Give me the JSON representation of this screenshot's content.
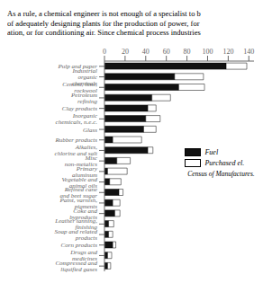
{
  "chart_data": {
    "type": "bar",
    "orientation": "horizontal",
    "stacked": true,
    "title": [
      "As a rule, a chemical engineer is not enough of a specialist to b",
      "of adequately designing plants for the production of power, for",
      "ation, or for conditioning air. Since chemical process industries"
    ],
    "annotations": [
      "Census of Manufactures."
    ],
    "categories": [
      "Pulp and paper",
      "Industrial organic chemicals",
      "Cement, lime, rockwool",
      "Petroleum refining",
      "Clay products",
      "Inorganic chemicals, n.e.c.",
      "Glass",
      "Rubber products",
      "Alkalies, chlorine and salt",
      "Misc non-metalics",
      "Primary aluminum",
      "Vegetable and animal oils",
      "Refined cane and beet sugar",
      "Paint, varnish, pigments",
      "Coke and byproducts",
      "Leather tanning, finishing",
      "Soap and related products",
      "Corn products",
      "Drugs and medicines",
      "Compressed and liquified gases"
    ],
    "series": [
      {
        "name": "Fuel",
        "color": "#111111",
        "values": [
          118,
          68,
          72,
          46,
          42,
          40,
          38,
          8,
          42,
          12,
          3,
          5,
          14,
          8,
          10,
          4,
          4,
          8,
          3,
          3
        ]
      },
      {
        "name": "Purchased el.",
        "color": "#ffffff",
        "values": [
          20,
          28,
          25,
          18,
          8,
          14,
          12,
          28,
          5,
          13,
          19,
          11,
          4,
          7,
          5,
          5,
          4,
          3,
          4,
          3
        ]
      }
    ],
    "xlim": [
      0,
      145
    ],
    "xticks": [
      0,
      20,
      40,
      60,
      80,
      100,
      120,
      140
    ],
    "grid": false,
    "legend": "right"
  }
}
